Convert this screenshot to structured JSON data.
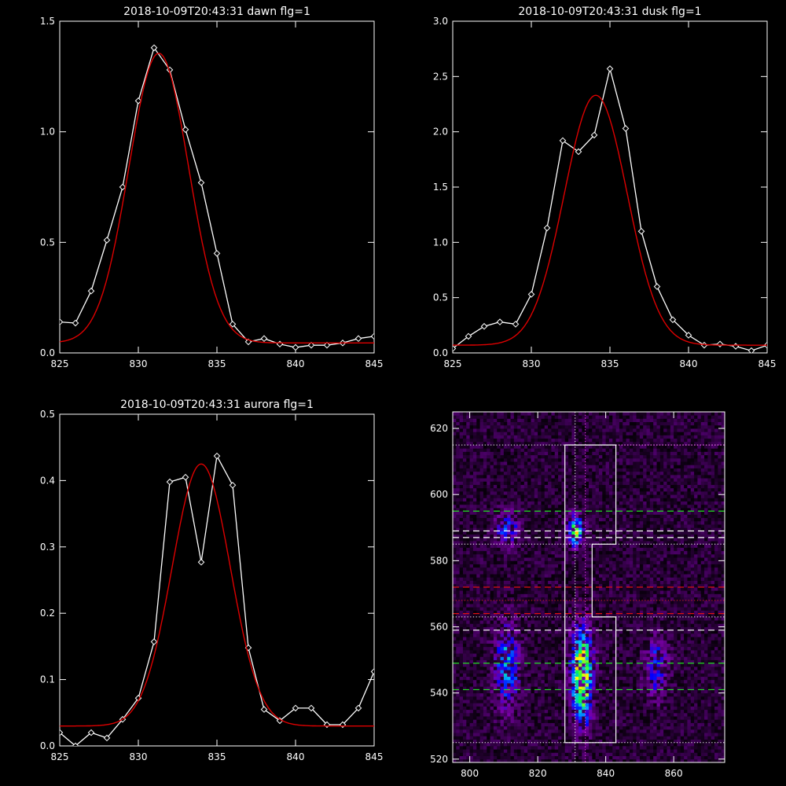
{
  "chart_data": [
    {
      "type": "line",
      "title": "2018-10-09T20:43:31 dawn flg=1",
      "xlim": [
        825,
        845
      ],
      "ylim": [
        0,
        1.5
      ],
      "xticks": [
        "825",
        "830",
        "835",
        "840",
        "845"
      ],
      "yticks": [
        "0.0",
        "0.5",
        "1.0",
        "1.5"
      ],
      "series": [
        {
          "color": "#ffffff",
          "markers": true,
          "x": [
            825,
            826,
            827,
            828,
            829,
            830,
            831,
            832,
            833,
            834,
            835,
            836,
            837,
            838,
            839,
            840,
            841,
            842,
            843,
            844,
            845
          ],
          "y": [
            0.14,
            0.135,
            0.28,
            0.51,
            0.75,
            1.14,
            1.38,
            1.28,
            1.01,
            0.77,
            0.45,
            0.13,
            0.05,
            0.065,
            0.04,
            0.025,
            0.035,
            0.035,
            0.045,
            0.065,
            0.075
          ]
        },
        {
          "color": "#dd0000",
          "markers": false,
          "fit": {
            "amp": 1.31,
            "center": 831.3,
            "sigma": 1.9,
            "base": 0.045
          }
        }
      ]
    },
    {
      "type": "line",
      "title": "2018-10-09T20:43:31 dusk flg=1",
      "xlim": [
        825,
        845
      ],
      "ylim": [
        0,
        3.0
      ],
      "xticks": [
        "825",
        "830",
        "835",
        "840",
        "845"
      ],
      "yticks": [
        "0.0",
        "0.5",
        "1.0",
        "1.5",
        "2.0",
        "2.5",
        "3.0"
      ],
      "series": [
        {
          "color": "#ffffff",
          "markers": true,
          "x": [
            825,
            826,
            827,
            828,
            829,
            830,
            831,
            832,
            833,
            834,
            835,
            836,
            837,
            838,
            839,
            840,
            841,
            842,
            843,
            844,
            845
          ],
          "y": [
            0.04,
            0.15,
            0.24,
            0.28,
            0.26,
            0.53,
            1.13,
            1.92,
            1.82,
            1.97,
            2.57,
            2.03,
            1.1,
            0.6,
            0.3,
            0.16,
            0.07,
            0.08,
            0.06,
            0.02,
            0.07
          ]
        },
        {
          "color": "#dd0000",
          "markers": false,
          "fit": {
            "amp": 2.26,
            "center": 834.1,
            "sigma": 2.0,
            "base": 0.07
          }
        }
      ]
    },
    {
      "type": "line",
      "title": "2018-10-09T20:43:31 aurora flg=1",
      "xlim": [
        825,
        845
      ],
      "ylim": [
        0,
        0.5
      ],
      "xticks": [
        "825",
        "830",
        "835",
        "840",
        "845"
      ],
      "yticks": [
        "0.0",
        "0.1",
        "0.2",
        "0.3",
        "0.4",
        "0.5"
      ],
      "series": [
        {
          "color": "#ffffff",
          "markers": true,
          "x": [
            825,
            826,
            827,
            828,
            829,
            830,
            831,
            832,
            833,
            834,
            835,
            836,
            837,
            838,
            839,
            840,
            841,
            842,
            843,
            844,
            845
          ],
          "y": [
            0.02,
            0.0,
            0.02,
            0.012,
            0.04,
            0.072,
            0.157,
            0.398,
            0.405,
            0.277,
            0.437,
            0.393,
            0.148,
            0.055,
            0.038,
            0.057,
            0.057,
            0.032,
            0.032,
            0.057,
            0.112
          ]
        },
        {
          "color": "#dd0000",
          "markers": false,
          "fit": {
            "amp": 0.395,
            "center": 834.0,
            "sigma": 1.85,
            "base": 0.03
          }
        }
      ]
    },
    {
      "type": "heatmap",
      "title": "",
      "xlim": [
        795,
        875
      ],
      "ylim": [
        519,
        625
      ],
      "xticks": [
        "800",
        "820",
        "840",
        "860"
      ],
      "yticks": [
        "520",
        "540",
        "560",
        "580",
        "600",
        "620"
      ],
      "colormap": [
        "#000000",
        "#3a0050",
        "#7a00a8",
        "#0000ff",
        "#00b4ff",
        "#00ff40",
        "#ffff00",
        "#ff0000"
      ],
      "blobs": [
        {
          "x": 811,
          "y": 590,
          "sx": 2.2,
          "sy": 3.5,
          "amp": 0.42
        },
        {
          "x": 831,
          "y": 589,
          "sx": 1.6,
          "sy": 3.2,
          "amp": 0.7
        },
        {
          "x": 811,
          "y": 548,
          "sx": 2.5,
          "sy": 8.5,
          "amp": 0.48
        },
        {
          "x": 833,
          "y": 548,
          "sx": 2.2,
          "sy": 8.5,
          "amp": 0.82
        },
        {
          "x": 855,
          "y": 548,
          "sx": 2.5,
          "sy": 6.5,
          "amp": 0.33
        },
        {
          "x": 833,
          "y": 536,
          "sx": 1.8,
          "sy": 6,
          "amp": 0.3
        }
      ],
      "white_box": [
        [
          828,
          525
        ],
        [
          828,
          615
        ],
        [
          843,
          615
        ],
        [
          843,
          585
        ],
        [
          836,
          585
        ],
        [
          836,
          563
        ],
        [
          843,
          563
        ],
        [
          843,
          525
        ],
        [
          835,
          525
        ]
      ],
      "green_dashed_y": [
        595,
        549,
        541
      ],
      "white_dashed_y": [
        589,
        587,
        559
      ],
      "red_dashed_y": [
        572,
        564
      ],
      "white_dotted_y": [
        615,
        585,
        563,
        525
      ],
      "magenta_dotted_y": [
        615
      ],
      "red_dotted_y": [
        568
      ],
      "vertical_dotted_x": [
        {
          "x": 831,
          "color": "#ffffff"
        },
        {
          "x": 834,
          "color": "#ff40ff"
        }
      ]
    }
  ]
}
